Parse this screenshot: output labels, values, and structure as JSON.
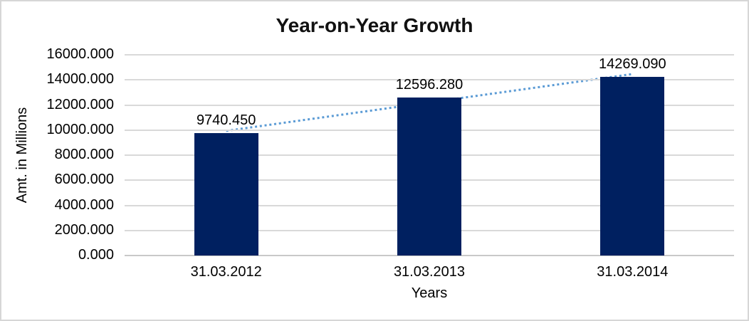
{
  "window": {
    "background": "#ffffff",
    "border_color": "#d6d6d6"
  },
  "chart_data": {
    "type": "bar",
    "title": "Year-on-Year Growth",
    "xlabel": "Years",
    "ylabel": "Amt. in Millions",
    "categories": [
      "31.03.2012",
      "31.03.2013",
      "31.03.2014"
    ],
    "values": [
      9740.45,
      12596.28,
      14269.09
    ],
    "value_labels": [
      "9740.450",
      "12596.280",
      "14269.090"
    ],
    "ylim": [
      0,
      16000
    ],
    "ytick_step": 2000,
    "ytick_labels": [
      "0.000",
      "2000.000",
      "4000.000",
      "6000.000",
      "8000.000",
      "10000.000",
      "12000.000",
      "14000.000",
      "16000.000"
    ],
    "grid": true,
    "legend": false,
    "bar_color": "#002060",
    "gridline_color": "#d9d9d9",
    "axis_line_color": "#c9c9c9",
    "text_color": "#000000",
    "trendline": {
      "type": "linear",
      "style": "dotted",
      "color": "#5b9bd5"
    }
  }
}
